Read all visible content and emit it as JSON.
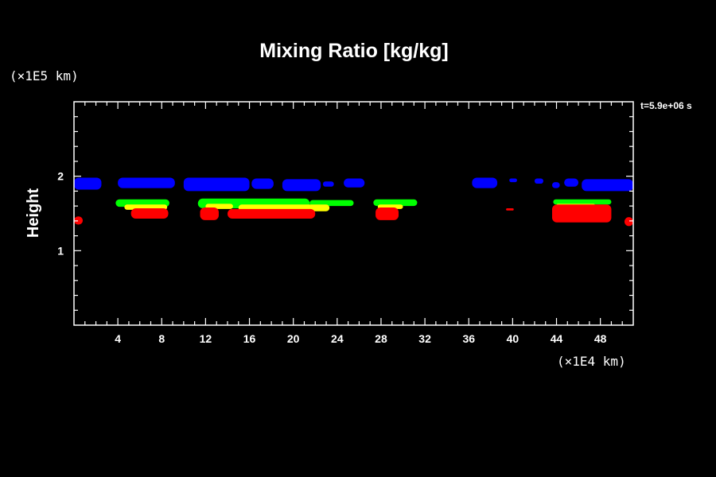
{
  "chart_data": {
    "type": "heatmap",
    "title": "Mixing Ratio [kg/kg]",
    "ylabel": "Height",
    "xlabel": "",
    "x_unit_label": "(×1E4 km)",
    "y_unit_label": "(×1E5 km)",
    "time_label": "t=5.9e+06 s",
    "xlim": [
      0,
      51
    ],
    "ylim": [
      0,
      3
    ],
    "x_ticks": [
      4,
      8,
      12,
      16,
      20,
      24,
      28,
      32,
      36,
      40,
      44,
      48
    ],
    "x_tick_labels": [
      "4",
      "8",
      "12",
      "16",
      "20",
      "24",
      "28",
      "32",
      "36",
      "40",
      "44",
      "48"
    ],
    "y_ticks": [
      1,
      2
    ],
    "y_tick_labels": [
      "1",
      "2"
    ],
    "x_minor_step": 1,
    "y_minor_step": 0.2,
    "background": "#000000",
    "level_colors": [
      "#0000ff",
      "#00ff00",
      "#ffff00",
      "#ff0000"
    ],
    "regions": [
      {
        "color": "#0000ff",
        "x0": 0.0,
        "x1": 2.5,
        "y0": 1.82,
        "y1": 1.98
      },
      {
        "color": "#0000ff",
        "x0": 4.0,
        "x1": 9.2,
        "y0": 1.84,
        "y1": 1.98
      },
      {
        "color": "#0000ff",
        "x0": 10.0,
        "x1": 16.0,
        "y0": 1.8,
        "y1": 1.98
      },
      {
        "color": "#0000ff",
        "x0": 16.2,
        "x1": 18.2,
        "y0": 1.83,
        "y1": 1.97
      },
      {
        "color": "#0000ff",
        "x0": 19.0,
        "x1": 22.5,
        "y0": 1.8,
        "y1": 1.96
      },
      {
        "color": "#0000ff",
        "x0": 22.7,
        "x1": 23.7,
        "y0": 1.86,
        "y1": 1.93
      },
      {
        "color": "#0000ff",
        "x0": 24.6,
        "x1": 26.5,
        "y0": 1.85,
        "y1": 1.97
      },
      {
        "color": "#0000ff",
        "x0": 36.3,
        "x1": 38.6,
        "y0": 1.84,
        "y1": 1.98
      },
      {
        "color": "#0000ff",
        "x0": 39.7,
        "x1": 40.4,
        "y0": 1.92,
        "y1": 1.97
      },
      {
        "color": "#0000ff",
        "x0": 42.0,
        "x1": 42.8,
        "y0": 1.9,
        "y1": 1.97
      },
      {
        "color": "#0000ff",
        "x0": 43.6,
        "x1": 44.3,
        "y0": 1.84,
        "y1": 1.92
      },
      {
        "color": "#0000ff",
        "x0": 44.7,
        "x1": 46.0,
        "y0": 1.86,
        "y1": 1.97
      },
      {
        "color": "#0000ff",
        "x0": 46.3,
        "x1": 51.0,
        "y0": 1.8,
        "y1": 1.96
      },
      {
        "color": "#00ff00",
        "x0": 3.8,
        "x1": 8.7,
        "y0": 1.59,
        "y1": 1.69
      },
      {
        "color": "#00ff00",
        "x0": 11.3,
        "x1": 21.5,
        "y0": 1.57,
        "y1": 1.7
      },
      {
        "color": "#00ff00",
        "x0": 21.5,
        "x1": 25.5,
        "y0": 1.6,
        "y1": 1.68
      },
      {
        "color": "#00ff00",
        "x0": 27.3,
        "x1": 31.3,
        "y0": 1.6,
        "y1": 1.69
      },
      {
        "color": "#00ff00",
        "x0": 43.7,
        "x1": 49.0,
        "y0": 1.62,
        "y1": 1.69
      },
      {
        "color": "#ffff00",
        "x0": 4.6,
        "x1": 8.5,
        "y0": 1.55,
        "y1": 1.62
      },
      {
        "color": "#ffff00",
        "x0": 12.0,
        "x1": 14.5,
        "y0": 1.56,
        "y1": 1.63
      },
      {
        "color": "#ffff00",
        "x0": 15.0,
        "x1": 23.3,
        "y0": 1.53,
        "y1": 1.62
      },
      {
        "color": "#ffff00",
        "x0": 27.7,
        "x1": 30.0,
        "y0": 1.56,
        "y1": 1.62
      },
      {
        "color": "#ffff00",
        "x0": 44.0,
        "x1": 47.5,
        "y0": 1.59,
        "y1": 1.63
      },
      {
        "color": "#ff0000",
        "x0": 0.0,
        "x1": 0.8,
        "y0": 1.35,
        "y1": 1.46
      },
      {
        "color": "#ff0000",
        "x0": 5.2,
        "x1": 8.6,
        "y0": 1.43,
        "y1": 1.57
      },
      {
        "color": "#ff0000",
        "x0": 11.5,
        "x1": 13.2,
        "y0": 1.41,
        "y1": 1.58
      },
      {
        "color": "#ff0000",
        "x0": 14.0,
        "x1": 22.0,
        "y0": 1.43,
        "y1": 1.56
      },
      {
        "color": "#ff0000",
        "x0": 27.5,
        "x1": 29.6,
        "y0": 1.41,
        "y1": 1.58
      },
      {
        "color": "#ff0000",
        "x0": 39.4,
        "x1": 40.1,
        "y0": 1.54,
        "y1": 1.57
      },
      {
        "color": "#ff0000",
        "x0": 43.6,
        "x1": 49.0,
        "y0": 1.38,
        "y1": 1.62
      },
      {
        "color": "#ff0000",
        "x0": 50.2,
        "x1": 51.0,
        "y0": 1.33,
        "y1": 1.45
      }
    ]
  }
}
